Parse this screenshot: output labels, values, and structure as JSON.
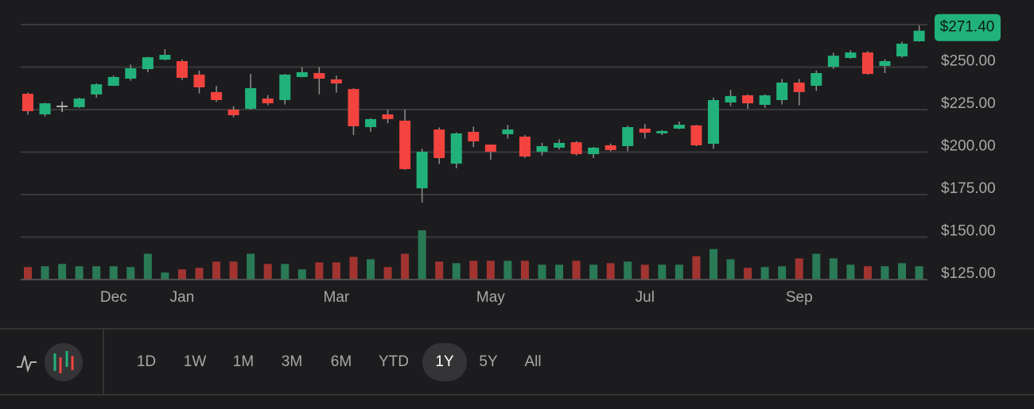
{
  "chart_data": {
    "type": "candlestick",
    "categories": [
      null,
      null,
      null,
      null,
      null,
      "Dec",
      null,
      null,
      null,
      "Jan",
      null,
      null,
      null,
      null,
      null,
      null,
      null,
      null,
      "Mar",
      null,
      null,
      null,
      null,
      null,
      null,
      null,
      null,
      "May",
      null,
      null,
      null,
      null,
      null,
      null,
      null,
      null,
      "Jul",
      null,
      null,
      null,
      null,
      null,
      null,
      null,
      null,
      "Sep",
      null,
      null,
      null,
      null,
      null,
      null,
      null
    ],
    "open": [
      234.3,
      222.2,
      226.9,
      226.4,
      233.9,
      239.0,
      243.2,
      248.8,
      254.4,
      253.5,
      245.6,
      235.3,
      225.0,
      225.5,
      231.5,
      230.6,
      244.2,
      246.5,
      242.8,
      237.1,
      214.7,
      222.2,
      218.5,
      178.7,
      213.3,
      193.2,
      211.9,
      204.4,
      210.5,
      209.1,
      200.2,
      202.6,
      205.8,
      198.8,
      204.0,
      203.5,
      213.8,
      211.0,
      213.8,
      215.7,
      204.9,
      229.2,
      233.4,
      227.8,
      230.6,
      240.9,
      239.0,
      250.2,
      255.4,
      258.6,
      250.7,
      256.3,
      265.2
    ],
    "high": [
      235.0,
      229.0,
      229.7,
      232.0,
      240.5,
      245.0,
      251.5,
      256.0,
      260.5,
      254.5,
      248.0,
      239.0,
      227.0,
      246.0,
      233.5,
      246.0,
      250.0,
      250.0,
      245.0,
      237.5,
      220.0,
      225.0,
      225.0,
      202.0,
      214.5,
      211.5,
      215.0,
      204.5,
      216.0,
      210.0,
      205.5,
      207.5,
      206.5,
      203.0,
      205.0,
      215.5,
      216.5,
      213.0,
      218.0,
      216.0,
      232.0,
      236.5,
      234.0,
      234.0,
      243.0,
      243.0,
      248.0,
      258.5,
      260.0,
      259.5,
      254.5,
      265.0,
      274.5
    ],
    "low": [
      222.0,
      221.0,
      223.6,
      226.0,
      232.0,
      239.0,
      242.0,
      247.0,
      254.0,
      242.5,
      234.5,
      229.5,
      220.5,
      225.0,
      227.5,
      228.0,
      244.0,
      234.0,
      235.0,
      210.0,
      212.0,
      217.0,
      189.5,
      170.3,
      193.0,
      190.5,
      203.0,
      195.5,
      208.0,
      196.5,
      198.0,
      201.5,
      198.0,
      196.5,
      200.5,
      200.5,
      208.0,
      210.0,
      213.5,
      203.5,
      202.0,
      227.0,
      225.5,
      226.0,
      228.0,
      227.5,
      236.0,
      249.0,
      255.0,
      245.5,
      246.5,
      255.5,
      265.0
    ],
    "close": [
      224.1,
      228.7,
      226.9,
      231.5,
      239.9,
      244.2,
      249.3,
      255.8,
      257.2,
      243.7,
      238.1,
      230.6,
      221.7,
      237.6,
      228.7,
      245.6,
      247.0,
      243.2,
      240.4,
      215.2,
      219.4,
      219.4,
      190.0,
      200.2,
      196.5,
      211.0,
      206.3,
      200.2,
      213.3,
      197.4,
      203.5,
      205.4,
      198.8,
      202.6,
      201.2,
      214.7,
      211.4,
      212.4,
      216.1,
      204.0,
      230.6,
      233.0,
      228.7,
      233.4,
      240.9,
      235.3,
      246.5,
      256.7,
      258.6,
      246.0,
      253.5,
      263.8,
      271.4
    ],
    "volume": [
      16,
      17,
      20,
      17,
      17,
      17,
      16,
      33,
      9,
      13,
      15,
      23,
      23,
      33,
      20,
      20,
      13,
      22,
      22,
      29,
      26,
      16,
      33,
      63,
      23,
      21,
      24,
      24,
      24,
      24,
      19,
      19,
      24,
      19,
      21,
      23,
      19,
      19,
      19,
      30,
      39,
      26,
      15,
      16,
      17,
      27,
      33,
      27,
      19,
      17,
      17,
      21,
      17
    ],
    "up_color": "#21b27b",
    "down_color": "#f2433f",
    "flat_color": "#b0b0b0",
    "volume_up_color": "#2a7a56",
    "volume_down_color": "#a13431",
    "price_tag": "$271.40",
    "ylim": [
      125,
      275
    ],
    "yticks": [
      {
        "value": 125,
        "label": "$125.00"
      },
      {
        "value": 150,
        "label": "$150.00"
      },
      {
        "value": 175,
        "label": "$175.00"
      },
      {
        "value": 200,
        "label": "$200.00"
      },
      {
        "value": 225,
        "label": "$225.00"
      },
      {
        "value": 250,
        "label": "$250.00"
      }
    ],
    "grid": true
  },
  "range_selector": {
    "options": [
      "1D",
      "1W",
      "1M",
      "3M",
      "6M",
      "YTD",
      "1Y",
      "5Y",
      "All"
    ],
    "selected": "1Y"
  }
}
